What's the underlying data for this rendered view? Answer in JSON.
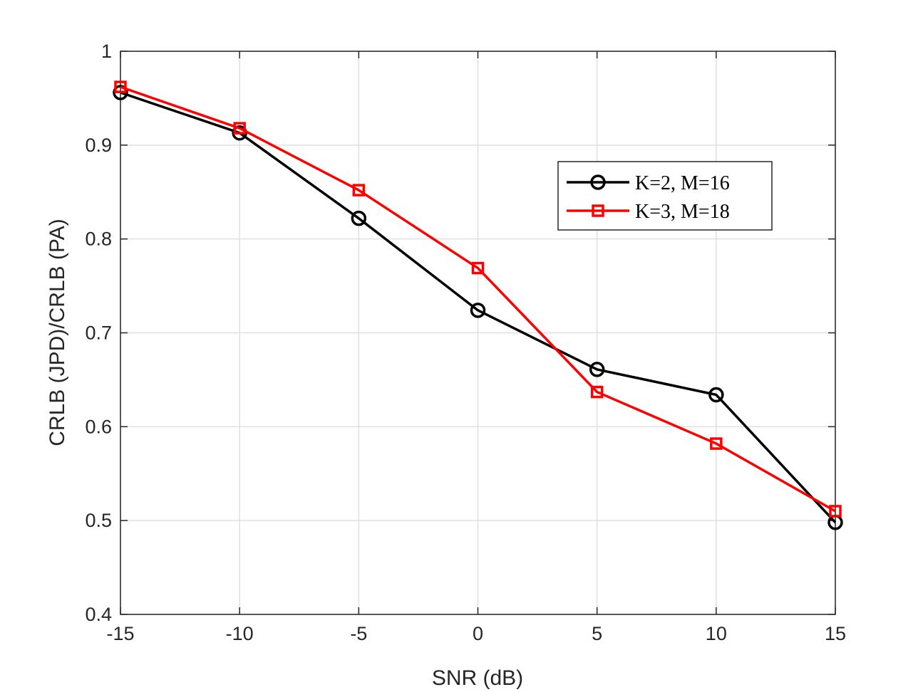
{
  "chart_data": {
    "type": "line",
    "title": "",
    "xlabel": "SNR (dB)",
    "ylabel": "CRLB (JPD)/CRLB (PA)",
    "xlim": [
      -15,
      15
    ],
    "ylim": [
      0.4,
      1
    ],
    "xticks": [
      -15,
      -10,
      -5,
      0,
      5,
      10,
      15
    ],
    "xtick_labels": [
      "-15",
      "-10",
      "-5",
      "0",
      "5",
      "10",
      "15"
    ],
    "yticks": [
      0.4,
      0.5,
      0.6,
      0.7,
      0.8,
      0.9,
      1
    ],
    "ytick_labels": [
      "0.4",
      "0.5",
      "0.6",
      "0.7",
      "0.8",
      "0.9",
      "1"
    ],
    "grid": true,
    "legend_position": "upper-right",
    "x": [
      -15,
      -10,
      -5,
      0,
      5,
      10,
      15
    ],
    "series": [
      {
        "name": "K=2, M=16",
        "color": "#000000",
        "marker": "circle",
        "values": [
          0.956,
          0.913,
          0.822,
          0.724,
          0.661,
          0.634,
          0.498
        ]
      },
      {
        "name": "K=3, M=18",
        "color": "#ff0000",
        "marker": "square",
        "values": [
          0.962,
          0.918,
          0.852,
          0.769,
          0.637,
          0.582,
          0.51
        ]
      }
    ]
  }
}
